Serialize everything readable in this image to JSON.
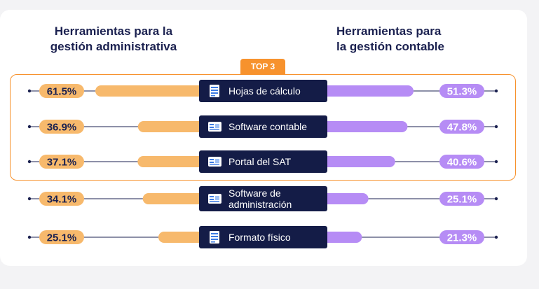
{
  "header": {
    "left_title_line1": "Herramientas para la",
    "left_title_line2": "gestión administrativa",
    "right_title_line1": "Herramientas para",
    "right_title_line2": "la gestión contable",
    "badge": "TOP 3"
  },
  "colors": {
    "left_bar": "#f7b96c",
    "left_pill": "#f7b96c",
    "right_bar": "#b68cf5",
    "right_pill": "#b68cf5",
    "category_box": "#141c47",
    "highlight": "#f7922d",
    "text_dark": "#1b2150"
  },
  "chart_data": {
    "type": "bar",
    "categories": [
      "Hojas de cálculo",
      "Software contable",
      "Portal del SAT",
      "Software de administración",
      "Formato físico"
    ],
    "category_lines": [
      [
        "Hojas de cálculo"
      ],
      [
        "Software contable"
      ],
      [
        "Portal del SAT"
      ],
      [
        "Software de",
        "administración"
      ],
      [
        "Formato físico"
      ]
    ],
    "category_icons": [
      "spreadsheet-icon",
      "software-icon",
      "portal-icon",
      "admin-software-icon",
      "document-icon"
    ],
    "series": [
      {
        "values": [
          61.5,
          36.9,
          37.1,
          34.1,
          25.1
        ],
        "labels": [
          "61.5%",
          "36.9%",
          "37.1%",
          "34.1%",
          "25.1%"
        ]
      },
      {
        "values": [
          51.3,
          47.8,
          40.6,
          25.1,
          21.3
        ],
        "labels": [
          "51.3%",
          "47.8%",
          "40.6%",
          "25.1%",
          "21.3%"
        ]
      }
    ],
    "unit": "%",
    "xlim": [
      0,
      100
    ],
    "highlighted_top": 3
  }
}
